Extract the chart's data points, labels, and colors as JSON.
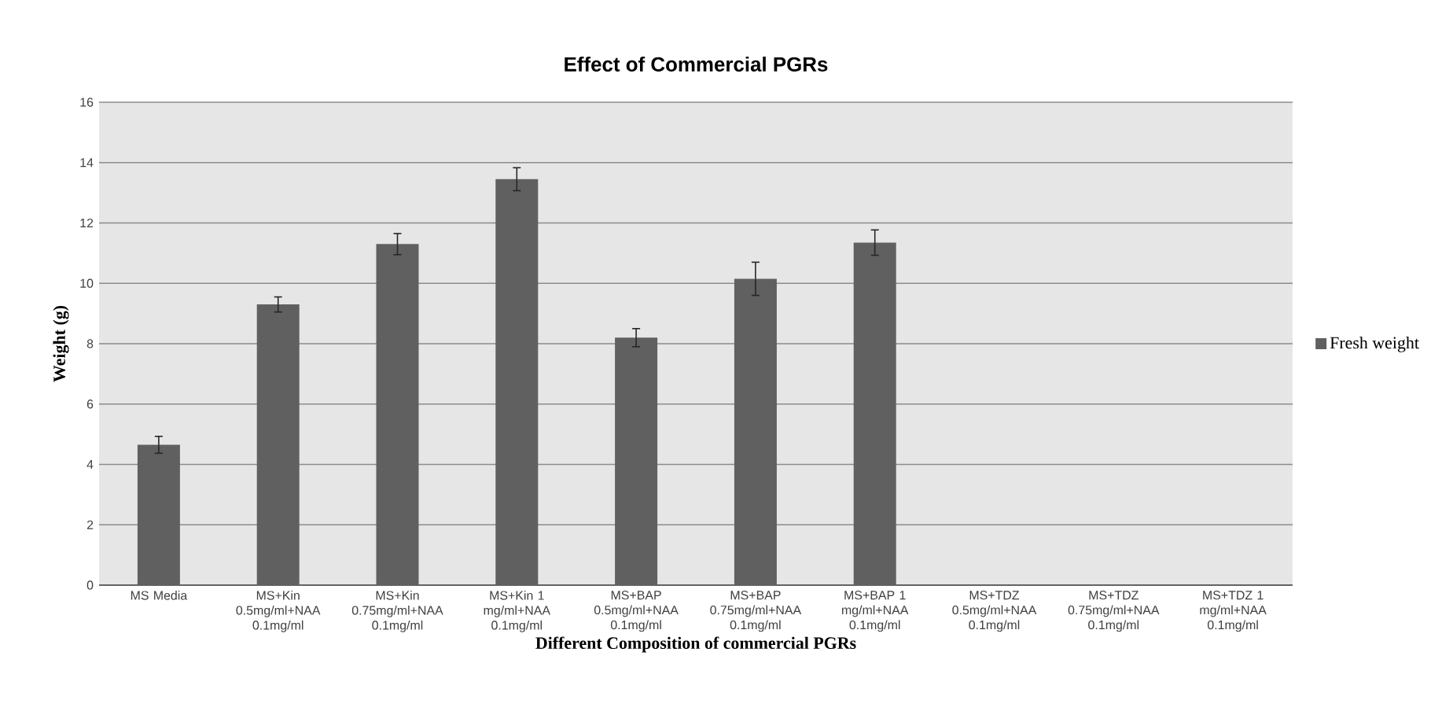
{
  "chart_data": {
    "type": "bar",
    "title": "Effect of Commercial PGRs",
    "xlabel": "Different Composition of commercial PGRs",
    "ylabel": "Weight (g)",
    "categories": [
      "MS Media",
      "MS+Kin 0.5mg/ml+NAA 0.1mg/ml",
      "MS+Kin 0.75mg/ml+NAA 0.1mg/ml",
      "MS+Kin 1 mg/ml+NAA 0.1mg/ml",
      "MS+BAP 0.5mg/ml+NAA 0.1mg/ml",
      "MS+BAP 0.75mg/ml+NAA 0.1mg/ml",
      "MS+BAP 1 mg/ml+NAA 0.1mg/ml",
      "MS+TDZ 0.5mg/ml+NAA 0.1mg/ml",
      "MS+TDZ 0.75mg/ml+NAA 0.1mg/ml",
      "MS+TDZ 1 mg/ml+NAA 0.1mg/ml"
    ],
    "series": [
      {
        "name": "Fresh weight",
        "color": "#606060",
        "values": [
          4.65,
          9.3,
          11.3,
          13.45,
          8.2,
          10.15,
          11.35,
          null,
          null,
          null
        ],
        "errors": [
          0.28,
          0.25,
          0.35,
          0.38,
          0.3,
          0.55,
          0.42,
          null,
          null,
          null
        ]
      }
    ],
    "ylim": [
      0,
      16
    ],
    "yticks": [
      0,
      2,
      4,
      6,
      8,
      10,
      12,
      14,
      16
    ],
    "grid": "y",
    "legend": "right"
  }
}
